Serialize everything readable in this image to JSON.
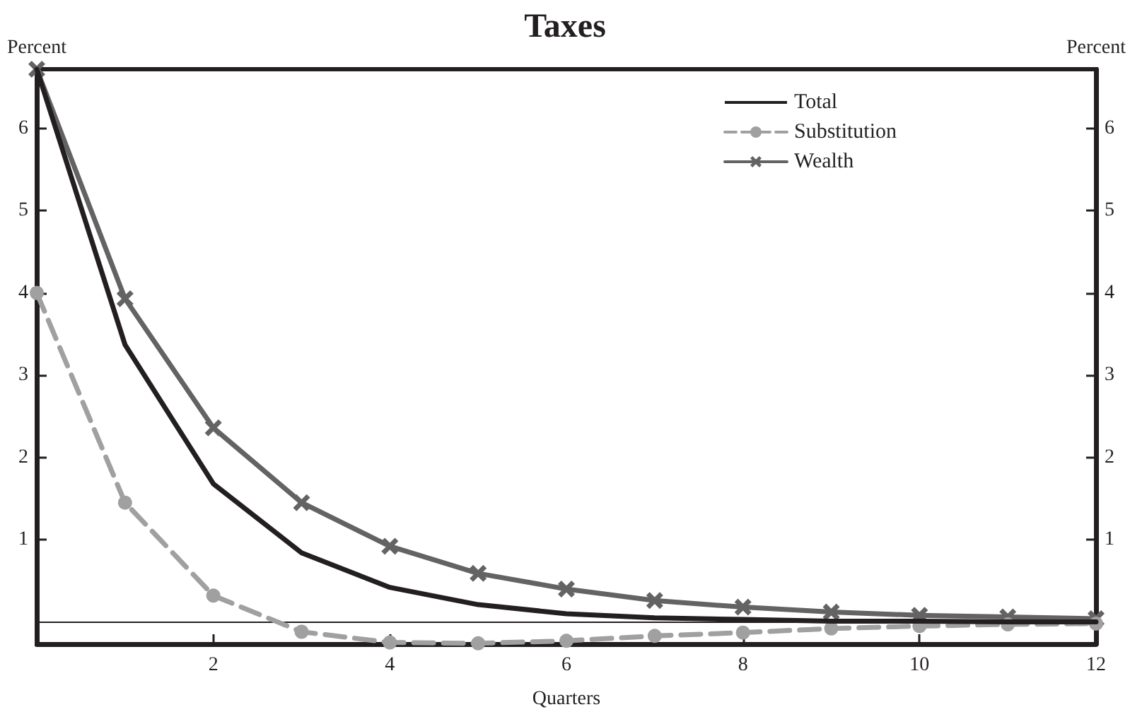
{
  "chart_data": {
    "type": "line",
    "title": "Taxes",
    "xlabel": "Quarters",
    "ylabel": "Percent",
    "y2label": "Percent",
    "x": [
      0,
      1,
      2,
      3,
      4,
      5,
      6,
      7,
      8,
      9,
      10,
      11,
      12
    ],
    "series": [
      {
        "name": "Total",
        "color": "#231f20",
        "marker": "none",
        "line_style": "solid",
        "values": [
          6.72,
          3.37,
          1.68,
          0.84,
          0.42,
          0.21,
          0.1,
          0.05,
          0.03,
          0.01,
          0.01,
          0.0,
          0.0
        ]
      },
      {
        "name": "Substitution",
        "color": "#a0a0a0",
        "marker": "circle",
        "line_style": "dashed",
        "values": [
          4.0,
          1.45,
          0.32,
          -0.12,
          -0.25,
          -0.26,
          -0.23,
          -0.17,
          -0.13,
          -0.08,
          -0.05,
          -0.03,
          -0.02
        ]
      },
      {
        "name": "Wealth",
        "color": "#636363",
        "marker": "cross",
        "line_style": "solid",
        "values": [
          6.72,
          3.93,
          2.36,
          1.45,
          0.92,
          0.59,
          0.4,
          0.26,
          0.18,
          0.12,
          0.08,
          0.06,
          0.04
        ]
      }
    ],
    "xlim": [
      0,
      12
    ],
    "xticks": [
      2,
      4,
      6,
      8,
      10,
      12
    ],
    "ylim": [
      -0.27,
      6.72
    ],
    "yticks": [
      1,
      2,
      3,
      4,
      5,
      6
    ],
    "y2lim": [
      -0.27,
      6.72
    ],
    "y2ticks": [
      1,
      2,
      3,
      4,
      5,
      6
    ],
    "ref_lines": [
      {
        "axis": "y",
        "value": 0,
        "color": "#231f20"
      }
    ],
    "legend": "top right",
    "grid": false
  }
}
